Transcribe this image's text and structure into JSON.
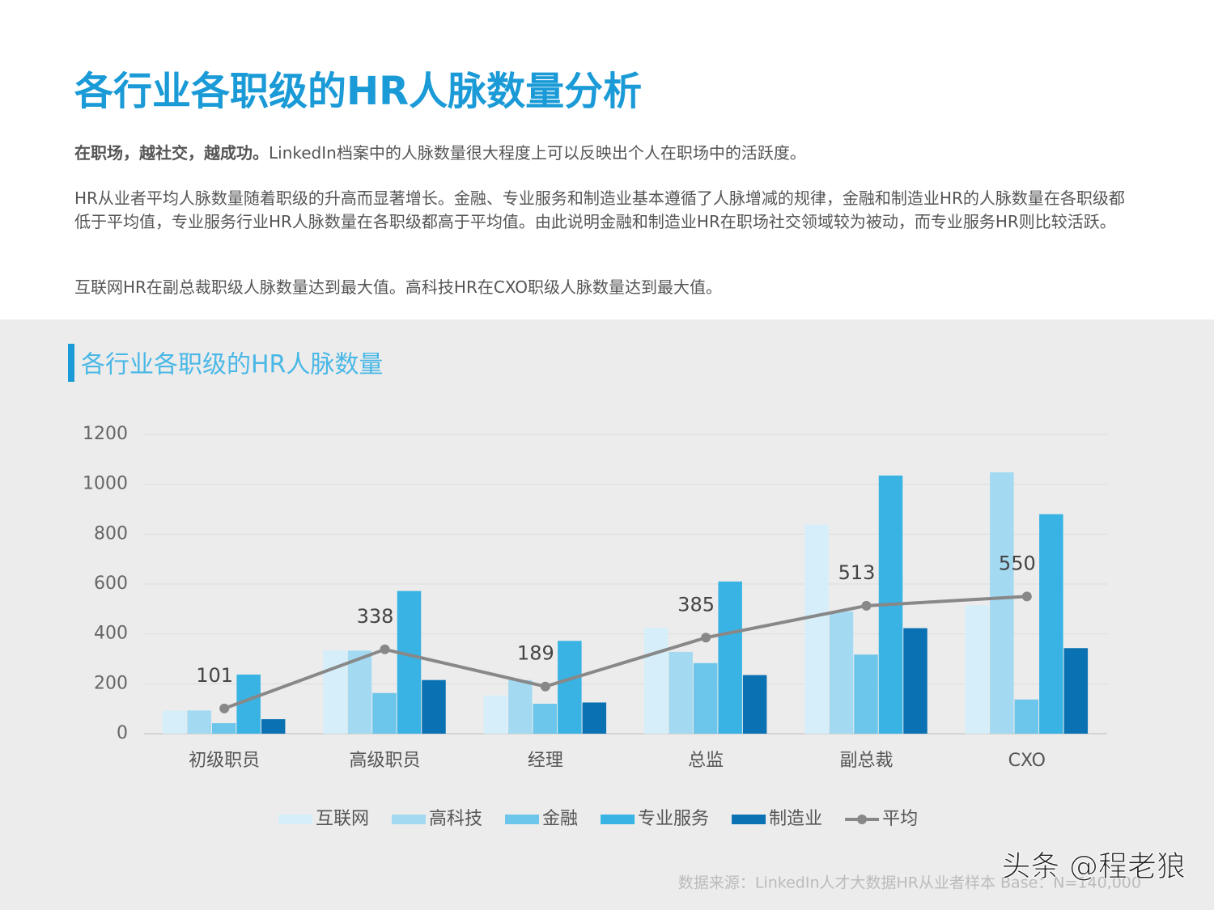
{
  "header": {
    "title": "各行业各职级的HR人脉数量分析",
    "lead_bold": "在职场，越社交，越成功。",
    "lead": "LinkedIn档案中的人脉数量很大程度上可以反映出个人在职场中的活跃度。",
    "paragraph_2": "HR从业者平均人脉数量随着职级的升高而显著增长。金融、专业服务和制造业基本遵循了人脉增减的规律，金融和制造业HR的人脉数量在各职级都低于平均值，专业服务行业HR人脉数量在各职级都高于平均值。由此说明金融和制造业HR在职场社交领域较为被动，而专业服务HR则比较活跃。",
    "paragraph_3": "互联网HR在副总裁职级人脉数量达到最大值。高科技HR在CXO职级人脉数量达到最大值。"
  },
  "chart_data": {
    "type": "bar",
    "title": "各行业各职级的HR人脉数量",
    "categories": [
      "初级职员",
      "高级职员",
      "经理",
      "总监",
      "副总裁",
      "CXO"
    ],
    "series": [
      {
        "name": "互联网",
        "color": "#d6eef9",
        "values": [
          92,
          333,
          153,
          425,
          838,
          515
        ]
      },
      {
        "name": "高科技",
        "color": "#a3d9f1",
        "values": [
          93,
          333,
          215,
          328,
          490,
          1048
        ]
      },
      {
        "name": "金融",
        "color": "#6cc5ea",
        "values": [
          42,
          163,
          120,
          283,
          317,
          137
        ]
      },
      {
        "name": "专业服务",
        "color": "#38b3e3",
        "values": [
          237,
          572,
          372,
          610,
          1035,
          880
        ]
      },
      {
        "name": "制造业",
        "color": "#0a72b3",
        "values": [
          58,
          215,
          125,
          235,
          423,
          343
        ]
      },
      {
        "name": "平均",
        "color": "#888888",
        "type": "line",
        "values": [
          101,
          338,
          189,
          385,
          513,
          550
        ]
      }
    ],
    "ylim": [
      0,
      1200
    ],
    "yticks": [
      0,
      200,
      400,
      600,
      800,
      1000,
      1200
    ],
    "grid": true,
    "legend": "bottom"
  },
  "footer": {
    "source": "数据来源：LinkedIn人才大数据HR从业者样本  Base：N=140,000",
    "watermark": "头条 @程老狼"
  }
}
